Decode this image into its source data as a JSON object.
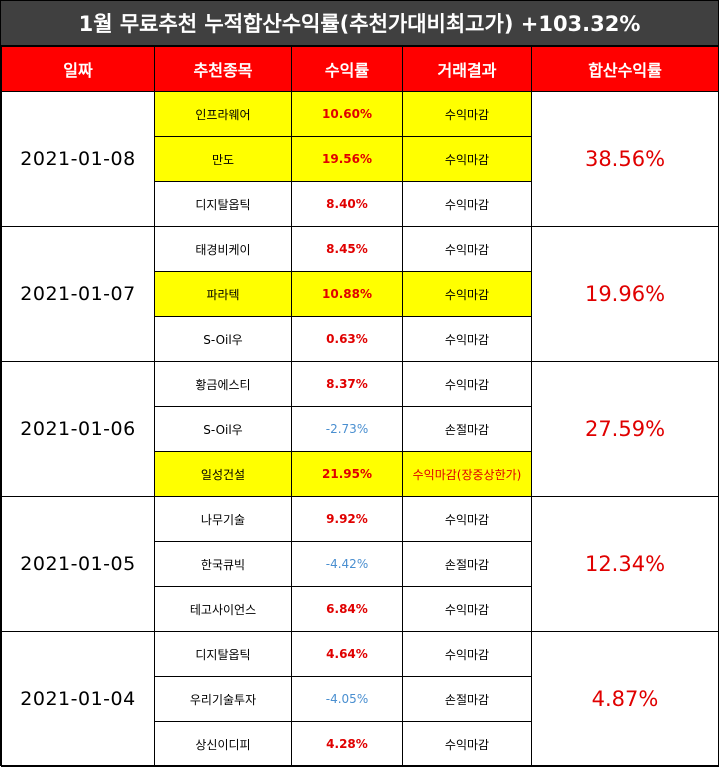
{
  "title": "1월 무료추천 누적합산수익률(추천가대비최고가) +103.32%",
  "headers": {
    "date": "일짜",
    "stock": "추천종목",
    "return": "수익률",
    "result": "거래결과",
    "cumulative": "합산수익률"
  },
  "groups": [
    {
      "date": "2021-01-08",
      "total": "38.56%",
      "rows": [
        {
          "stock": "인프라웨어",
          "return": "10.60%",
          "result": "수익마감"
        },
        {
          "stock": "만도",
          "return": "19.56%",
          "result": "수익마감"
        },
        {
          "stock": "디지탈옵틱",
          "return": "8.40%",
          "result": "수익마감"
        }
      ]
    },
    {
      "date": "2021-01-07",
      "total": "19.96%",
      "rows": [
        {
          "stock": "태경비케이",
          "return": "8.45%",
          "result": "수익마감"
        },
        {
          "stock": "파라텍",
          "return": "10.88%",
          "result": "수익마감"
        },
        {
          "stock": "S-Oil우",
          "return": "0.63%",
          "result": "수익마감"
        }
      ]
    },
    {
      "date": "2021-01-06",
      "total": "27.59%",
      "rows": [
        {
          "stock": "황금에스티",
          "return": "8.37%",
          "result": "수익마감"
        },
        {
          "stock": "S-Oil우",
          "return": "-2.73%",
          "result": "손절마감"
        },
        {
          "stock": "일성건설",
          "return": "21.95%",
          "result": "수익마감(장중상한가)"
        }
      ]
    },
    {
      "date": "2021-01-05",
      "total": "12.34%",
      "rows": [
        {
          "stock": "나무기술",
          "return": "9.92%",
          "result": "수익마감"
        },
        {
          "stock": "한국큐빅",
          "return": "-4.42%",
          "result": "손절마감"
        },
        {
          "stock": "테고사이언스",
          "return": "6.84%",
          "result": "수익마감"
        }
      ]
    },
    {
      "date": "2021-01-04",
      "total": "4.87%",
      "rows": [
        {
          "stock": "디지탈옵틱",
          "return": "4.64%",
          "result": "수익마감"
        },
        {
          "stock": "우리기술투자",
          "return": "-4.05%",
          "result": "손절마감"
        },
        {
          "stock": "상신이디피",
          "return": "4.28%",
          "result": "수익마감"
        }
      ]
    }
  ],
  "colors": {
    "banner_bg": "#404040",
    "header_bg": "#ff0000",
    "highlight": "#ffff00",
    "positive": "#e00000",
    "negative": "#4a8fd0"
  }
}
